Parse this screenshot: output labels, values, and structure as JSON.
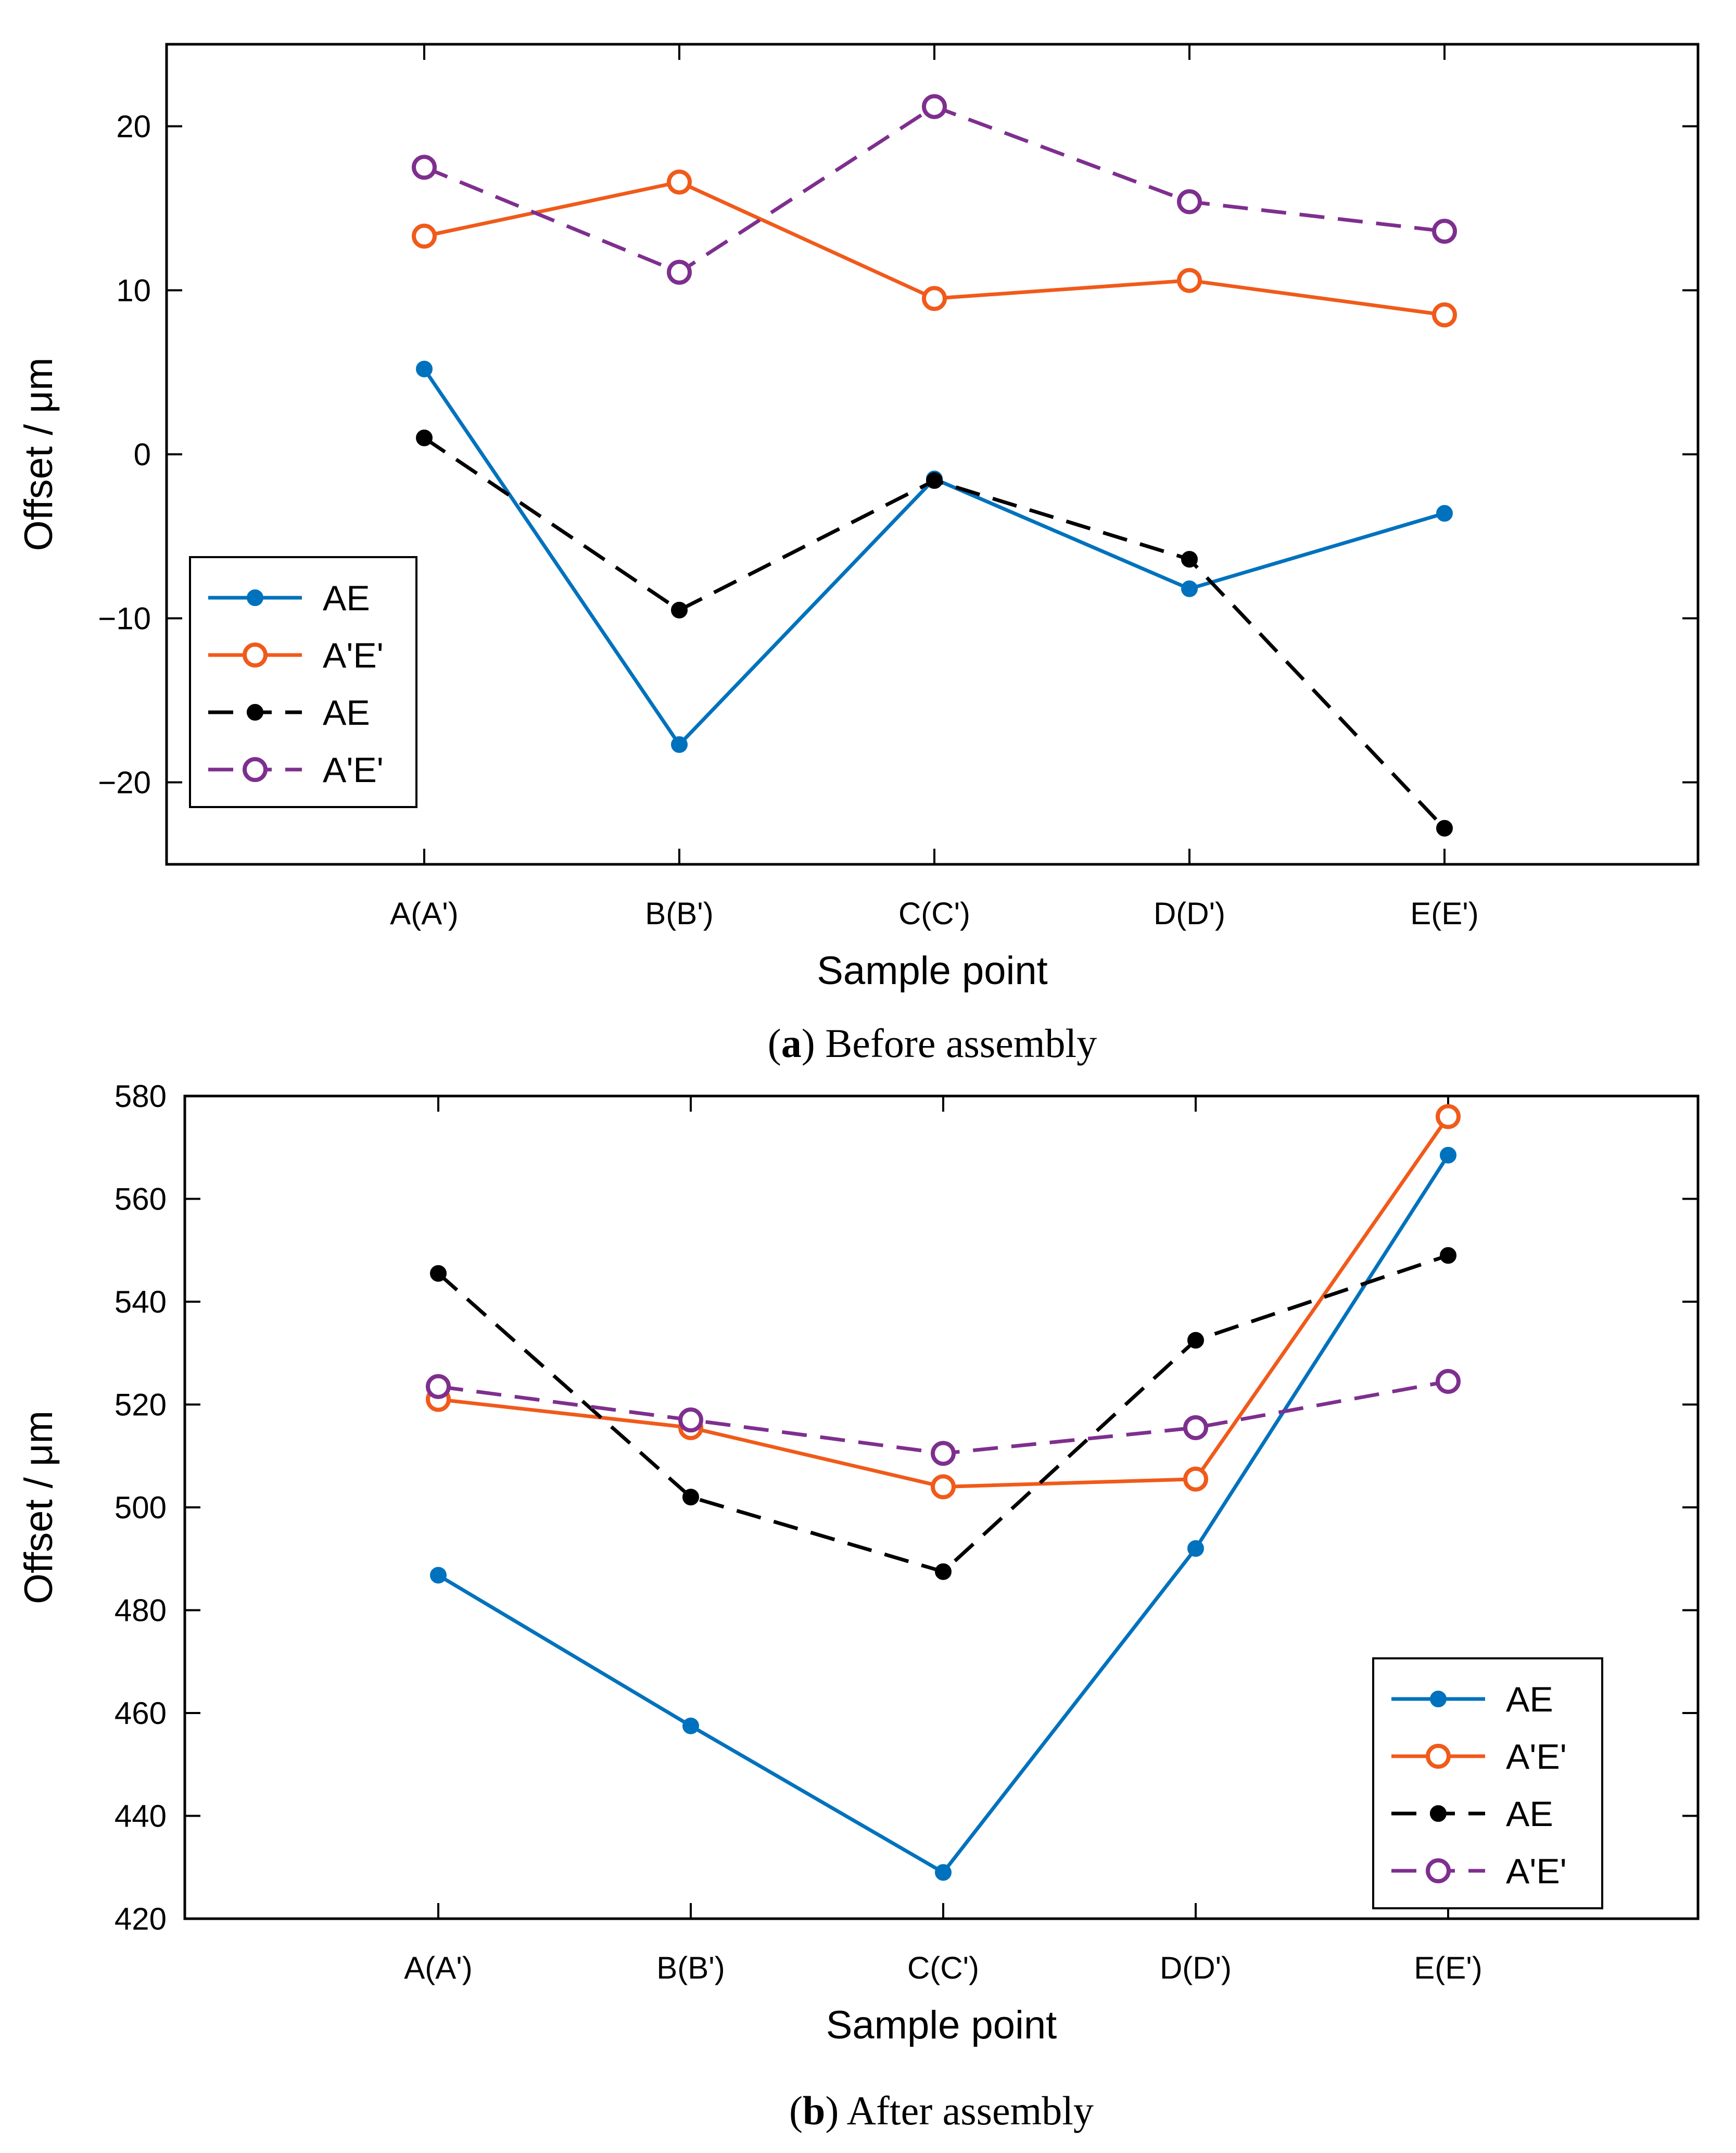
{
  "chart_data": [
    {
      "type": "line",
      "caption_letter": "a",
      "caption_text": "Before assembly",
      "xlabel": "Sample point",
      "ylabel": "Offset / μm",
      "categories": [
        "A(A')",
        "B(B')",
        "C(C')",
        "D(D')",
        "E(E')"
      ],
      "ylim": [
        -25,
        25
      ],
      "yticks": [
        -20,
        -10,
        0,
        10,
        20
      ],
      "legend_position": "bottom-left",
      "series": [
        {
          "name": "AE",
          "color": "#0072BD",
          "dash": "solid",
          "marker": "filled",
          "values": [
            5.2,
            -17.7,
            -1.5,
            -8.2,
            -3.6
          ]
        },
        {
          "name": "A'E'",
          "color": "#F05A1A",
          "dash": "solid",
          "marker": "open",
          "values": [
            13.3,
            16.6,
            9.5,
            10.6,
            8.5
          ]
        },
        {
          "name": "AE",
          "color": "#000000",
          "dash": "dashed",
          "marker": "filled",
          "values": [
            1.0,
            -9.5,
            -1.6,
            -6.4,
            -22.8
          ]
        },
        {
          "name": "A'E'",
          "color": "#7E2F8E",
          "dash": "dashed",
          "marker": "open",
          "values": [
            17.5,
            11.1,
            21.2,
            15.4,
            13.6
          ]
        }
      ]
    },
    {
      "type": "line",
      "caption_letter": "b",
      "caption_text": "After assembly",
      "xlabel": "Sample point",
      "ylabel": "Offset / μm",
      "categories": [
        "A(A')",
        "B(B')",
        "C(C')",
        "D(D')",
        "E(E')"
      ],
      "ylim": [
        420,
        580
      ],
      "yticks": [
        420,
        440,
        460,
        480,
        500,
        520,
        540,
        560,
        580
      ],
      "legend_position": "bottom-right",
      "series": [
        {
          "name": "AE",
          "color": "#0072BD",
          "dash": "solid",
          "marker": "filled",
          "values": [
            486.8,
            457.5,
            429.0,
            492.0,
            568.5
          ]
        },
        {
          "name": "A'E'",
          "color": "#F05A1A",
          "dash": "solid",
          "marker": "open",
          "values": [
            521.0,
            515.5,
            504.0,
            505.5,
            576.0
          ]
        },
        {
          "name": "AE",
          "color": "#000000",
          "dash": "dashed",
          "marker": "filled",
          "values": [
            545.5,
            502.0,
            487.5,
            532.5,
            549.0
          ]
        },
        {
          "name": "A'E'",
          "color": "#7E2F8E",
          "dash": "dashed",
          "marker": "open",
          "values": [
            523.5,
            517.0,
            510.5,
            515.5,
            524.5
          ]
        }
      ]
    }
  ]
}
